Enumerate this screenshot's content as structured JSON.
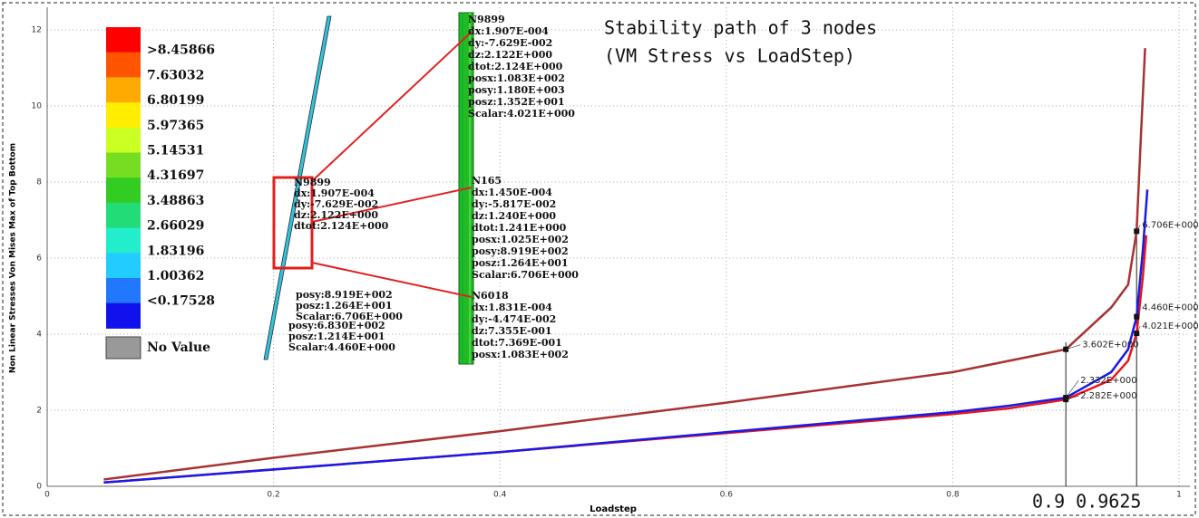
{
  "chart_data": {
    "type": "line",
    "title": [
      "Stability path of 3 nodes",
      "(VM Stress vs LoadStep)"
    ],
    "xlabel": "Loadstep",
    "ylabel": "Non Linear Stresses Von Mises Max of Top Bottom",
    "xlim": [
      0,
      1
    ],
    "ylim": [
      0,
      12
    ],
    "xticks": [
      0,
      0.2,
      0.4,
      0.6,
      0.8,
      1
    ],
    "yticks": [
      0,
      2,
      4,
      6,
      8,
      10,
      12
    ],
    "grid": true,
    "series": [
      {
        "color": "#a83232",
        "x": [
          0.05,
          0.2,
          0.4,
          0.6,
          0.8,
          0.85,
          0.9,
          0.94,
          0.955,
          0.9625,
          0.966,
          0.97
        ],
        "values": [
          0.18,
          0.75,
          1.45,
          2.2,
          3.0,
          3.3,
          3.602,
          4.7,
          5.3,
          6.706,
          9.0,
          11.52
        ]
      },
      {
        "color": "#e8141c",
        "x": [
          0.05,
          0.4,
          0.8,
          0.85,
          0.9,
          0.94,
          0.955,
          0.9625,
          0.968,
          0.971
        ],
        "values": [
          0.1,
          0.9,
          1.9,
          2.05,
          2.282,
          2.8,
          3.3,
          4.021,
          5.5,
          6.6
        ]
      },
      {
        "color": "#1a1ae6",
        "x": [
          0.05,
          0.4,
          0.8,
          0.85,
          0.9,
          0.94,
          0.955,
          0.9625,
          0.968,
          0.972
        ],
        "values": [
          0.1,
          0.9,
          1.95,
          2.12,
          2.332,
          3.0,
          3.6,
          4.46,
          6.2,
          7.8
        ]
      }
    ],
    "annotations": [
      {
        "x": 0.9,
        "y": 3.602,
        "label": "3.602E+000"
      },
      {
        "x": 0.9,
        "y": 2.332,
        "label": "2.332E+000"
      },
      {
        "x": 0.9,
        "y": 2.282,
        "label": "2.282E+000"
      },
      {
        "x": 0.9625,
        "y": 6.706,
        "label": "6.706E+000"
      },
      {
        "x": 0.9625,
        "y": 4.46,
        "label": "4.460E+000"
      },
      {
        "x": 0.9625,
        "y": 4.021,
        "label": "4.021E+000"
      }
    ],
    "vlines": [
      0.9,
      0.9625
    ],
    "vline_label": "0.9 0.9625"
  },
  "contour_legend": {
    "labels": [
      ">8.45866",
      "7.63032",
      "6.80199",
      "5.97365",
      "5.14531",
      "4.31697",
      "3.48863",
      "2.66029",
      "1.83196",
      "1.00362",
      "<0.17528"
    ],
    "colors": [
      "#ff0000",
      "#ff5500",
      "#ffaa00",
      "#ffee00",
      "#ccff22",
      "#77dd22",
      "#33cc22",
      "#22dd77",
      "#22eecc",
      "#22ccff",
      "#2277ff",
      "#1111ee"
    ],
    "no_value": "No Value"
  },
  "node_labels": [
    [
      "N9899",
      "dx:1.907E-004",
      "dy:-7.629E-002",
      "dz:2.122E+000",
      "dtot:2.124E+000",
      "posx:1.083E+002",
      "posy:1.180E+003",
      "posz:1.352E+001",
      "Scalar:4.021E+000"
    ],
    [
      "N165",
      "dx:1.450E-004",
      "dy:-5.817E-002",
      "dz:1.240E+000",
      "dtot:1.241E+000",
      "posx:1.025E+002",
      "posy:8.919E+002",
      "posz:1.264E+001",
      "Scalar:6.706E+000"
    ],
    [
      "N6018",
      "dx:1.831E-004",
      "dy:-4.474E-002",
      "dz:7.355E-001",
      "dtot:7.369E-001",
      "posx:1.083E+002"
    ]
  ],
  "model_labels": [
    [
      "N9899",
      "dx:1.907E-004",
      "dy:-7.629E-002",
      "dz:2.122E+000",
      "dtot:2.124E+000"
    ],
    [
      "posy:8.919E+002",
      "posz:1.264E+001",
      "Scalar:6.706E+000"
    ],
    [
      "posy:6.830E+002",
      "posz:1.214E+001",
      "Scalar:4.460E+000"
    ]
  ]
}
